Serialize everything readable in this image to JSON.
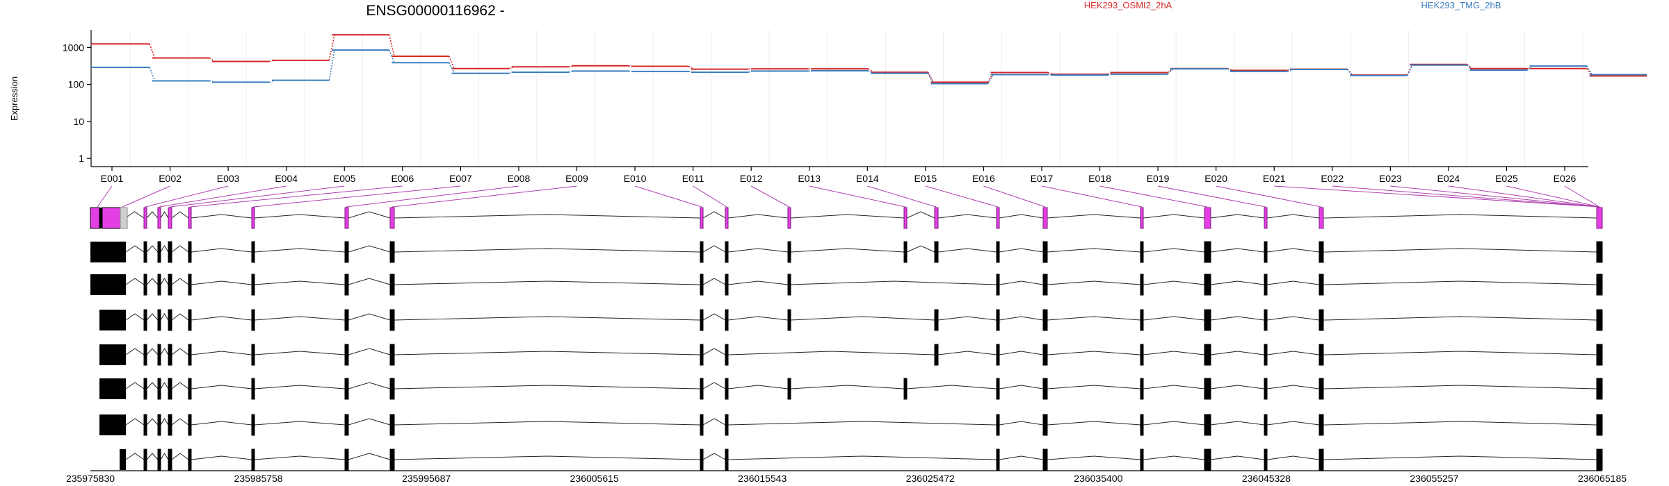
{
  "title": "ENSG00000116962 -",
  "ylabel": "Expression",
  "legend": [
    {
      "label": "HEK293_OSMI2_2hA",
      "color": "#d62728"
    },
    {
      "label": "HEK293_TMG_2hB",
      "color": "#3b7dbf"
    }
  ],
  "chart_data": {
    "type": "line",
    "title": "ENSG00000116962 -",
    "ylabel": "Expression",
    "yscale": "log",
    "ylim": [
      0.6,
      3000
    ],
    "yticks": [
      "1",
      "10",
      "100",
      "1000"
    ],
    "grid": "vertical",
    "legend_position": "top-right",
    "categories": [
      "E001",
      "E002",
      "E003",
      "E004",
      "E005",
      "E006",
      "E007",
      "E008",
      "E009",
      "E010",
      "E011",
      "E012",
      "E013",
      "E014",
      "E015",
      "E016",
      "E017",
      "E018",
      "E019",
      "E020",
      "E021",
      "E022",
      "E023",
      "E024",
      "E025",
      "E026"
    ],
    "series": [
      {
        "name": "HEK293_OSMI2_2hA",
        "color": "#d62728",
        "values": [
          1250,
          520,
          420,
          450,
          2200,
          580,
          270,
          300,
          320,
          310,
          260,
          265,
          265,
          215,
          115,
          210,
          190,
          210,
          270,
          240,
          260,
          180,
          350,
          270,
          270,
          170
        ]
      },
      {
        "name": "HEK293_TMG_2hB",
        "color": "#3b7dbf",
        "values": [
          290,
          125,
          115,
          130,
          850,
          390,
          200,
          215,
          230,
          225,
          215,
          230,
          235,
          200,
          105,
          185,
          180,
          190,
          265,
          225,
          255,
          175,
          335,
          245,
          315,
          185
        ]
      }
    ]
  },
  "genomic_axis": {
    "ticks": [
      "235975830",
      "235985758",
      "235995687",
      "236005615",
      "236015543",
      "236025472",
      "236035400",
      "236045328",
      "236055257",
      "236065185"
    ]
  },
  "transcript_model": {
    "exon_mapping_to_bins": [
      0,
      0,
      1,
      2,
      3,
      4,
      5,
      6,
      7,
      8,
      9,
      10,
      11,
      12,
      13,
      14,
      15,
      16,
      17,
      18,
      19,
      20,
      21,
      22,
      23,
      24,
      25
    ]
  }
}
